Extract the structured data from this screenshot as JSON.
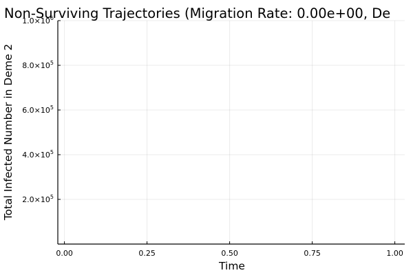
{
  "chart_data": {
    "type": "line",
    "title": "Non-Surviving Trajectories (Migration Rate: 0.00e+00, De",
    "xlabel": "Time",
    "ylabel": "Total Infected Number in Deme 2",
    "xlim": [
      -0.02,
      1.03
    ],
    "ylim": [
      0,
      1000000
    ],
    "grid": true,
    "legend": "none",
    "x_ticks": [
      {
        "value": 0.0,
        "label": "0.00"
      },
      {
        "value": 0.25,
        "label": "0.25"
      },
      {
        "value": 0.5,
        "label": "0.50"
      },
      {
        "value": 0.75,
        "label": "0.75"
      },
      {
        "value": 1.0,
        "label": "1.00"
      }
    ],
    "y_ticks": [
      {
        "value": 200000,
        "mantissa": "2.0×10",
        "exponent": "5"
      },
      {
        "value": 400000,
        "mantissa": "4.0×10",
        "exponent": "5"
      },
      {
        "value": 600000,
        "mantissa": "6.0×10",
        "exponent": "5"
      },
      {
        "value": 800000,
        "mantissa": "8.0×10",
        "exponent": "5"
      },
      {
        "value": 1000000,
        "mantissa": "1.0×10",
        "exponent": "6"
      }
    ],
    "series": []
  }
}
